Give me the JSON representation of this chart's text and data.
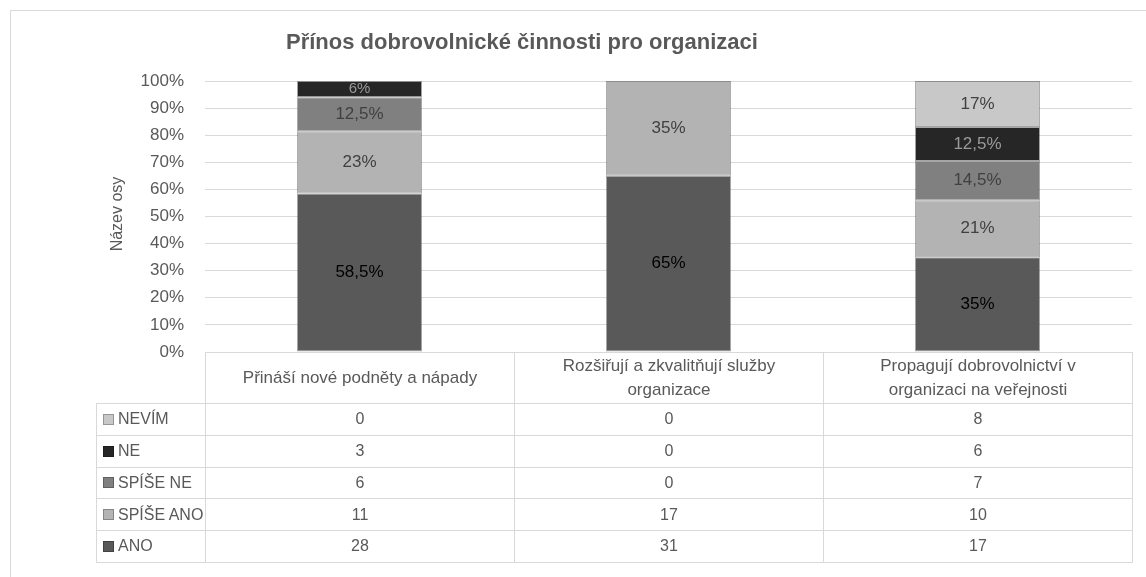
{
  "chart_data": {
    "type": "bar",
    "title": "Přínos dobrovolnické činnosti pro organizaci",
    "ylabel": "Název osy",
    "categories": [
      "Přináší nové podněty a nápady",
      "Rozšiřují a zkvalitňují služby organizace",
      "Propagují dobrovolnictví v organizaci na veřejnosti"
    ],
    "series": [
      {
        "name": "ANO",
        "color": "#595959",
        "values": [
          58.5,
          65,
          35
        ],
        "value_labels": [
          "58,5%",
          "65%",
          "35%"
        ]
      },
      {
        "name": "SPÍŠE ANO",
        "color": "#b3b3b3",
        "values": [
          23,
          35,
          21
        ],
        "value_labels": [
          "23%",
          "35%",
          "21%"
        ]
      },
      {
        "name": "SPÍŠE NE",
        "color": "#808080",
        "values": [
          12.5,
          0,
          14.5
        ],
        "value_labels": [
          "12,5%",
          null,
          "14,5%"
        ]
      },
      {
        "name": "NE",
        "color": "#262626",
        "values": [
          6,
          0,
          12.5
        ],
        "value_labels": [
          "6%",
          null,
          "12,5%"
        ]
      },
      {
        "name": "NEVÍM",
        "color": "#c8c8c8",
        "values": [
          0,
          0,
          17
        ],
        "value_labels": [
          null,
          null,
          "17%"
        ]
      }
    ],
    "stacked": true,
    "ylim": [
      0,
      100
    ],
    "yticks": [
      {
        "value": 0,
        "label": "0%"
      },
      {
        "value": 10,
        "label": "10%"
      },
      {
        "value": 20,
        "label": "20%"
      },
      {
        "value": 30,
        "label": "30%"
      },
      {
        "value": 40,
        "label": "40%"
      },
      {
        "value": 50,
        "label": "50%"
      },
      {
        "value": 60,
        "label": "60%"
      },
      {
        "value": 70,
        "label": "70%"
      },
      {
        "value": 80,
        "label": "80%"
      },
      {
        "value": 90,
        "label": "90%"
      },
      {
        "value": 100,
        "label": "100%"
      }
    ],
    "grid": "y",
    "legend": "bottom",
    "annotations": [
      "0",
      "0",
      "8",
      "3",
      "0",
      "6",
      "6",
      "0",
      "7",
      "11",
      "17",
      "10",
      "28",
      "31",
      "17"
    ]
  }
}
